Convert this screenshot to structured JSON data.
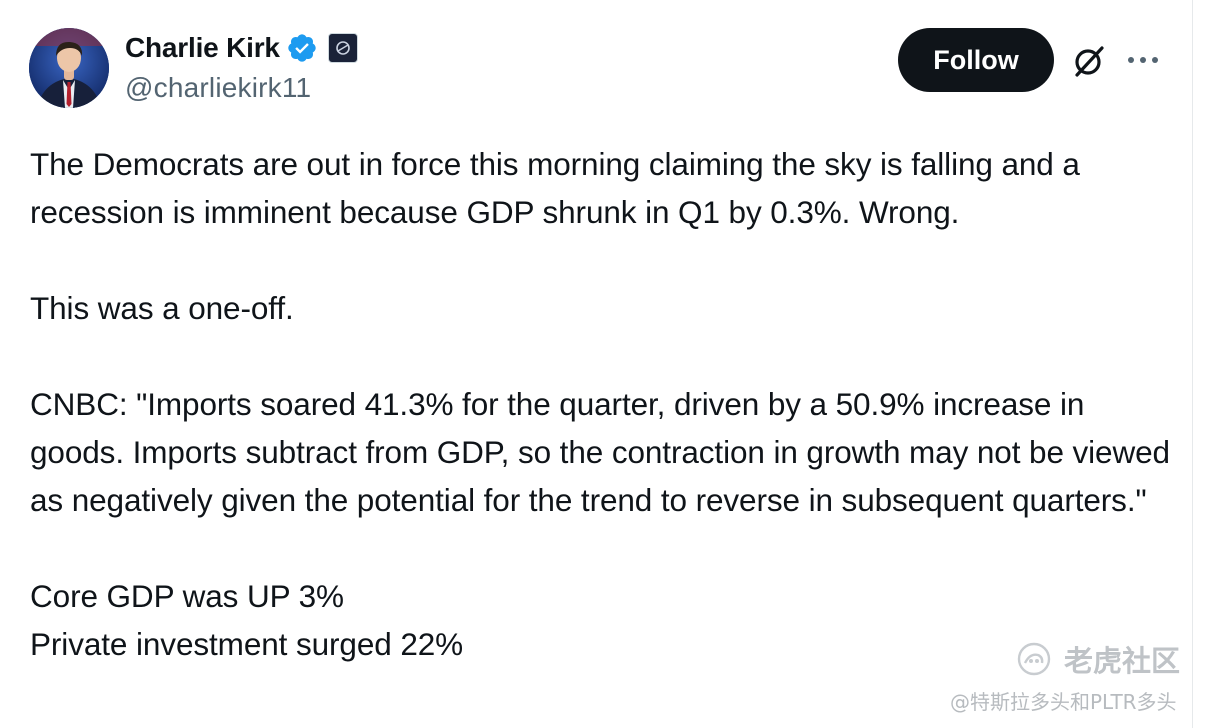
{
  "author": {
    "display_name": "Charlie Kirk",
    "handle": "@charliekirk11",
    "verified": true,
    "avatar_icon": "profile-photo",
    "affiliate_badge_icon": "organization-affiliate-badge"
  },
  "actions": {
    "follow_label": "Follow",
    "grok_icon": "grok-icon",
    "more_icon": "more-options-icon"
  },
  "tweet": {
    "paragraphs": [
      "The Democrats are out in force this morning claiming the sky is falling and a recession is imminent because GDP shrunk in Q1 by 0.3%. Wrong.",
      "This was a one-off.",
      "CNBC: \"Imports soared 41.3% for the quarter, driven by a 50.9% increase in goods. Imports subtract from GDP, so the contraction in growth may not be viewed as negatively given the potential for the trend to reverse in subsequent quarters.\"",
      "Core GDP was UP 3%",
      "Private investment surged 22%"
    ]
  },
  "watermark": {
    "brand": "老虎社区",
    "user": "@特斯拉多头和PLTR多头"
  },
  "colors": {
    "text": "#0f1419",
    "secondary_text": "#536471",
    "verified_blue": "#1d9bf0",
    "follow_bg": "#0f1419",
    "watermark": "#bfc3c7"
  }
}
